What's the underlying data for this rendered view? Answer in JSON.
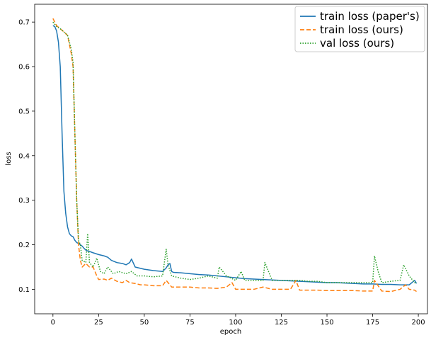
{
  "chart_data": {
    "type": "line",
    "title": "",
    "xlabel": "epoch",
    "ylabel": "loss",
    "xlim": [
      -10,
      205
    ],
    "ylim": [
      0.045,
      0.74
    ],
    "xticks": [
      0,
      25,
      50,
      75,
      100,
      125,
      150,
      175,
      200
    ],
    "yticks": [
      0.1,
      0.2,
      0.3,
      0.4,
      0.5,
      0.6,
      0.7
    ],
    "grid": false,
    "legend_position": "top-right",
    "series": [
      {
        "name": "train loss (paper's)",
        "color": "#1f77b4",
        "style": "solid",
        "x": [
          0,
          1,
          2,
          3,
          4,
          5,
          6,
          7,
          8,
          9,
          10,
          11,
          12,
          13,
          14,
          15,
          16,
          17,
          18,
          19,
          20,
          22,
          25,
          28,
          30,
          32,
          35,
          38,
          40,
          42,
          43,
          45,
          48,
          50,
          55,
          60,
          62,
          63,
          64,
          65,
          66,
          70,
          75,
          80,
          85,
          90,
          95,
          100,
          105,
          110,
          115,
          120,
          125,
          130,
          135,
          140,
          145,
          150,
          155,
          160,
          165,
          170,
          175,
          180,
          185,
          190,
          195,
          198,
          199
        ],
        "y": [
          0.692,
          0.69,
          0.68,
          0.655,
          0.6,
          0.45,
          0.32,
          0.27,
          0.24,
          0.225,
          0.22,
          0.218,
          0.21,
          0.205,
          0.203,
          0.2,
          0.197,
          0.192,
          0.188,
          0.186,
          0.185,
          0.182,
          0.178,
          0.175,
          0.172,
          0.165,
          0.16,
          0.158,
          0.155,
          0.16,
          0.168,
          0.15,
          0.147,
          0.145,
          0.142,
          0.14,
          0.148,
          0.155,
          0.158,
          0.14,
          0.138,
          0.137,
          0.135,
          0.133,
          0.132,
          0.13,
          0.128,
          0.126,
          0.124,
          0.123,
          0.122,
          0.121,
          0.12,
          0.119,
          0.118,
          0.117,
          0.116,
          0.115,
          0.115,
          0.114,
          0.113,
          0.112,
          0.112,
          0.111,
          0.111,
          0.11,
          0.11,
          0.12,
          0.113
        ]
      },
      {
        "name": "train loss (ours)",
        "color": "#ff7f0e",
        "style": "dashed",
        "x": [
          0,
          2,
          4,
          6,
          8,
          10,
          11,
          12,
          13,
          14,
          15,
          16,
          18,
          20,
          22,
          24,
          25,
          28,
          30,
          32,
          35,
          38,
          40,
          42,
          45,
          48,
          50,
          55,
          60,
          62,
          65,
          70,
          75,
          80,
          85,
          90,
          95,
          98,
          100,
          105,
          110,
          115,
          120,
          125,
          130,
          133,
          135,
          140,
          145,
          150,
          155,
          160,
          165,
          170,
          175,
          176,
          180,
          185,
          190,
          193,
          195,
          198,
          199
        ],
        "y": [
          0.708,
          0.692,
          0.685,
          0.678,
          0.67,
          0.63,
          0.6,
          0.45,
          0.3,
          0.2,
          0.165,
          0.15,
          0.158,
          0.15,
          0.15,
          0.13,
          0.122,
          0.123,
          0.12,
          0.125,
          0.118,
          0.115,
          0.12,
          0.115,
          0.113,
          0.11,
          0.11,
          0.108,
          0.108,
          0.12,
          0.105,
          0.105,
          0.105,
          0.103,
          0.103,
          0.102,
          0.105,
          0.115,
          0.1,
          0.1,
          0.1,
          0.105,
          0.1,
          0.1,
          0.1,
          0.12,
          0.098,
          0.098,
          0.098,
          0.097,
          0.097,
          0.097,
          0.097,
          0.096,
          0.096,
          0.12,
          0.096,
          0.095,
          0.1,
          0.11,
          0.1,
          0.098,
          0.095
        ]
      },
      {
        "name": "val loss (ours)",
        "color": "#2ca02c",
        "style": "dotted",
        "x": [
          0,
          2,
          4,
          6,
          8,
          10,
          11,
          12,
          13,
          14,
          15,
          16,
          18,
          19,
          20,
          22,
          24,
          26,
          28,
          30,
          33,
          36,
          40,
          43,
          46,
          50,
          55,
          60,
          62,
          63,
          65,
          70,
          75,
          80,
          85,
          90,
          91,
          95,
          100,
          103,
          105,
          110,
          115,
          116,
          120,
          125,
          130,
          135,
          140,
          145,
          150,
          155,
          160,
          165,
          170,
          175,
          176,
          178,
          180,
          185,
          190,
          192,
          195,
          198,
          199
        ],
        "y": [
          0.7,
          0.69,
          0.685,
          0.678,
          0.67,
          0.64,
          0.61,
          0.45,
          0.3,
          0.21,
          0.2,
          0.165,
          0.16,
          0.225,
          0.16,
          0.15,
          0.17,
          0.14,
          0.135,
          0.15,
          0.135,
          0.14,
          0.135,
          0.14,
          0.13,
          0.13,
          0.128,
          0.13,
          0.19,
          0.155,
          0.13,
          0.125,
          0.122,
          0.125,
          0.13,
          0.125,
          0.15,
          0.13,
          0.12,
          0.14,
          0.12,
          0.12,
          0.12,
          0.16,
          0.12,
          0.12,
          0.12,
          0.12,
          0.118,
          0.118,
          0.115,
          0.115,
          0.115,
          0.115,
          0.115,
          0.115,
          0.175,
          0.14,
          0.115,
          0.118,
          0.12,
          0.155,
          0.13,
          0.115,
          0.118
        ]
      }
    ]
  }
}
